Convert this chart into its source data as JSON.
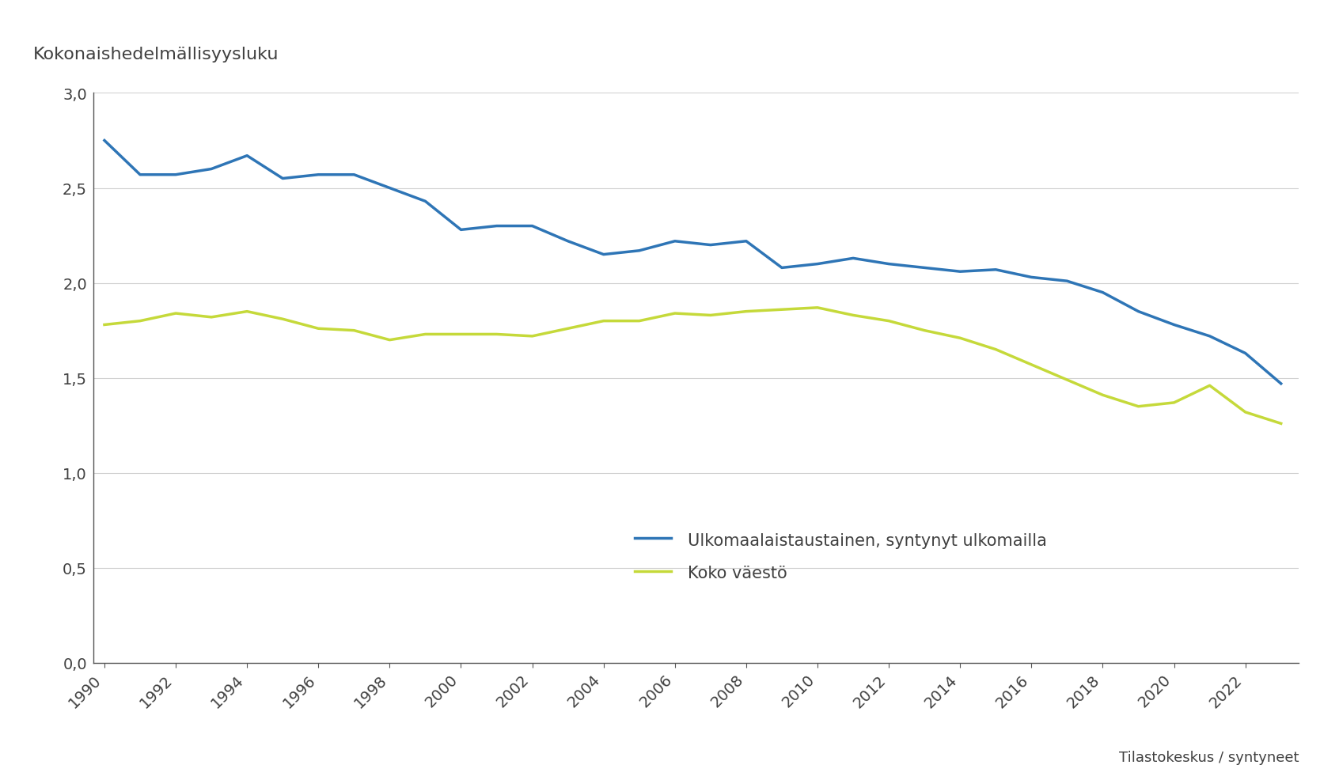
{
  "title": "Kokonaishedelmällisyysluku",
  "xlabel": "Tilastokeskus / syntyneet",
  "years": [
    1990,
    1991,
    1992,
    1993,
    1994,
    1995,
    1996,
    1997,
    1998,
    1999,
    2000,
    2001,
    2002,
    2003,
    2004,
    2005,
    2006,
    2007,
    2008,
    2009,
    2010,
    2011,
    2012,
    2013,
    2014,
    2015,
    2016,
    2017,
    2018,
    2019,
    2020,
    2021,
    2022,
    2023
  ],
  "foreign_born": [
    2.75,
    2.57,
    2.57,
    2.6,
    2.67,
    2.55,
    2.57,
    2.57,
    2.5,
    2.43,
    2.28,
    2.3,
    2.3,
    2.22,
    2.15,
    2.17,
    2.22,
    2.2,
    2.22,
    2.08,
    2.1,
    2.13,
    2.1,
    2.08,
    2.06,
    2.07,
    2.03,
    2.01,
    1.95,
    1.85,
    1.78,
    1.72,
    1.63,
    1.47
  ],
  "total_population": [
    1.78,
    1.8,
    1.84,
    1.82,
    1.85,
    1.81,
    1.76,
    1.75,
    1.7,
    1.73,
    1.73,
    1.73,
    1.72,
    1.76,
    1.8,
    1.8,
    1.84,
    1.83,
    1.85,
    1.86,
    1.87,
    1.83,
    1.8,
    1.75,
    1.71,
    1.65,
    1.57,
    1.49,
    1.41,
    1.35,
    1.37,
    1.46,
    1.32,
    1.26
  ],
  "foreign_color": "#2E75B6",
  "total_color": "#C5D93A",
  "line_width": 2.5,
  "legend_label_foreign": "Ulkomaalaistaustainen, syntynyt ulkomailla",
  "legend_label_total": "Koko väestö",
  "ylim": [
    0.0,
    3.0
  ],
  "yticks": [
    0.0,
    0.5,
    1.0,
    1.5,
    2.0,
    2.5,
    3.0
  ],
  "ytick_labels": [
    "0,0",
    "0,5",
    "1,0",
    "1,5",
    "2,0",
    "2,5",
    "3,0"
  ],
  "bg_color": "#ffffff",
  "grid_color": "#d0d0d0",
  "font_color": "#404040",
  "title_fontsize": 16,
  "tick_fontsize": 14,
  "legend_fontsize": 15
}
